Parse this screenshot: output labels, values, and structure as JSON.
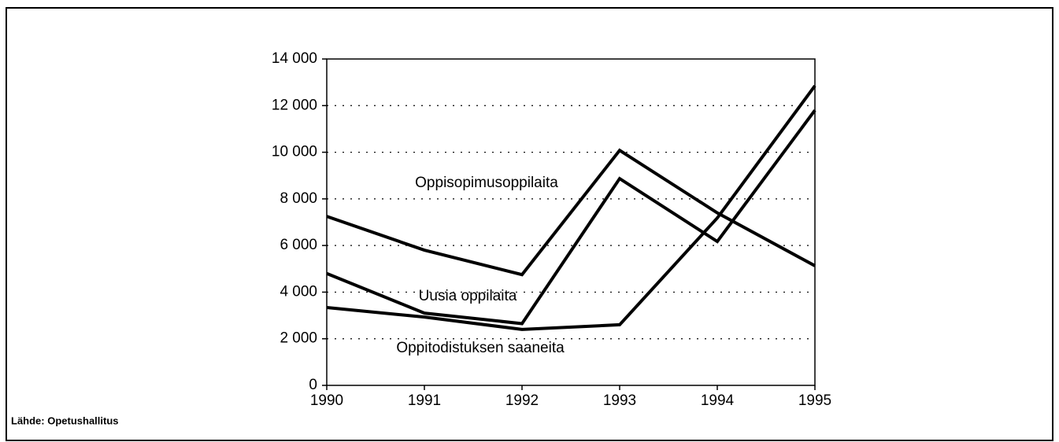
{
  "chart_data": {
    "type": "line",
    "x": [
      "1990",
      "1991",
      "1992",
      "1993",
      "1994",
      "1995"
    ],
    "series": [
      {
        "name": "Oppisopimusoppilaita",
        "color": "#000000",
        "values": [
          7250,
          5800,
          4750,
          10080,
          7400,
          5130
        ]
      },
      {
        "name": "Uusia oppilaita",
        "color": "#000000",
        "values": [
          4800,
          3100,
          2650,
          8870,
          6170,
          11800
        ]
      },
      {
        "name": "Oppitodistuksen saaneita",
        "color": "#000000",
        "values": [
          3340,
          2930,
          2400,
          2600,
          7180,
          12850
        ]
      }
    ],
    "ylim": [
      0,
      14000
    ],
    "yticks": [
      0,
      {
        "value": 2000,
        "label": "2 000"
      },
      {
        "value": 4000,
        "label": "4 000"
      },
      {
        "value": 6000,
        "label": "6 000"
      },
      {
        "value": 8000,
        "label": "8 000"
      },
      {
        "value": 10000,
        "label": "10 000"
      },
      {
        "value": 12000,
        "label": "12 000"
      },
      {
        "value": 14000,
        "label": "14 000"
      }
    ],
    "grid": true,
    "source": "Lähde: Opetushallitus"
  }
}
